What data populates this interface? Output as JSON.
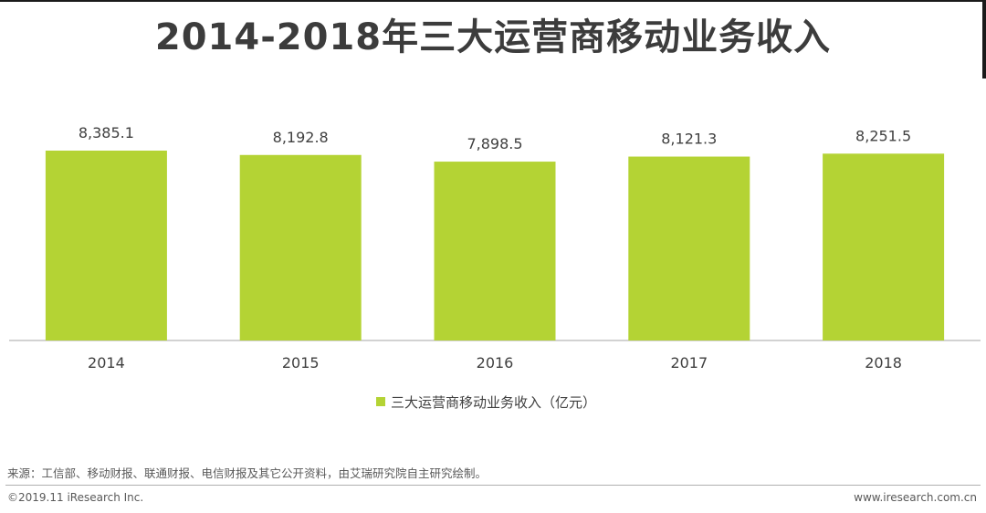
{
  "title": "2014-2018年三大运营商移动业务收入",
  "chart_data": {
    "type": "bar",
    "categories": [
      "2014",
      "2015",
      "2016",
      "2017",
      "2018"
    ],
    "series": [
      {
        "name": "三大运营商移动业务收入（亿元）",
        "values": [
          8385.1,
          8192.8,
          7898.5,
          8121.3,
          8251.5
        ]
      }
    ],
    "data_labels": [
      "8,385.1",
      "8,192.8",
      "7,898.5",
      "8,121.3",
      "8,251.5"
    ],
    "ylim": [
      0,
      10000
    ],
    "grid": false,
    "legend_position": "bottom-center",
    "bar_color": "#b4d334"
  },
  "legend_label": "三大运营商移动业务收入（亿元）",
  "source": "来源：工信部、移动财报、联通财报、电信财报及其它公开资料，由艾瑞研究院自主研究绘制。",
  "footer": {
    "copyright": "©2019.11 iResearch Inc.",
    "website": "www.iresearch.com.cn"
  }
}
